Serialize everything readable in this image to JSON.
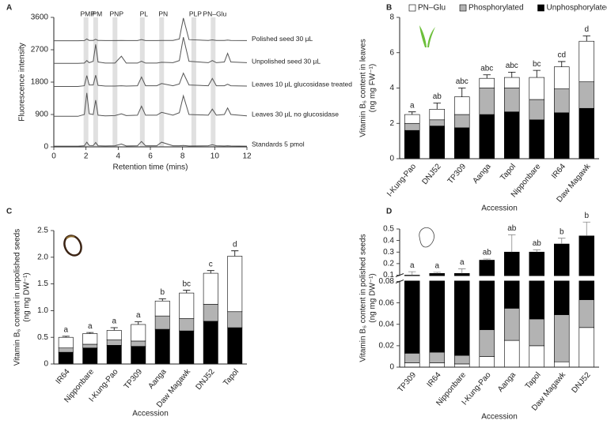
{
  "chart_data": [
    {
      "type": "line",
      "panel": "A",
      "xlabel": "Retention time (mins)",
      "ylabel": "Fluorescence intensity",
      "xlim": [
        0,
        12
      ],
      "xticks": [
        0,
        2,
        4,
        6,
        8,
        10,
        12
      ],
      "ylim": [
        0,
        3600
      ],
      "yticks": [
        0,
        900,
        1800,
        2700,
        3600
      ],
      "peaks": [
        {
          "label": "PMP",
          "x": 2.0
        },
        {
          "label": "PM",
          "x": 2.6
        },
        {
          "label": "PNP",
          "x": 3.8
        },
        {
          "label": "PL",
          "x": 5.5
        },
        {
          "label": "PN",
          "x": 6.7
        },
        {
          "label": "PLP",
          "x": 8.7
        },
        {
          "label": "PN–Glu",
          "x": 9.9
        }
      ],
      "x": [
        0,
        1.5,
        1.9,
        2.05,
        2.2,
        2.45,
        2.6,
        2.75,
        3.2,
        3.8,
        4.2,
        4.5,
        5.2,
        5.45,
        5.7,
        6.4,
        6.7,
        7.4,
        7.8,
        8.05,
        8.4,
        9.6,
        9.85,
        10.1,
        10.6,
        10.8,
        11.0,
        12
      ],
      "series": [
        {
          "name": "Polished seed 30 µL",
          "color": "#555555",
          "values": [
            2950,
            2950,
            2955,
            3000,
            2960,
            2960,
            2990,
            2960,
            2955,
            2955,
            2960,
            2955,
            2955,
            2980,
            2955,
            2955,
            2960,
            2960,
            3000,
            3580,
            2980,
            2960,
            2975,
            2960,
            2960,
            2970,
            2960,
            2955
          ]
        },
        {
          "name": "Unpolished seed 30 µL",
          "color": "#555555",
          "values": [
            2320,
            2320,
            2330,
            2400,
            2340,
            2380,
            2850,
            2360,
            2330,
            2330,
            2520,
            2330,
            2330,
            2380,
            2330,
            2330,
            2350,
            2340,
            2400,
            3050,
            2380,
            2340,
            2400,
            2340,
            2360,
            2600,
            2360,
            2340
          ]
        },
        {
          "name": "Leaves 10 µL glucosidase treated",
          "color": "#555555",
          "values": [
            1680,
            1680,
            1700,
            1980,
            1720,
            1720,
            1990,
            1710,
            1690,
            1690,
            1700,
            1690,
            1700,
            1940,
            1700,
            1700,
            1760,
            1700,
            1750,
            2050,
            1720,
            1700,
            1900,
            1700,
            1700,
            1740,
            1700,
            1690
          ]
        },
        {
          "name": "Leaves 30 µL no glucosidase",
          "color": "#555555",
          "values": [
            850,
            850,
            900,
            1500,
            920,
            900,
            1300,
            880,
            860,
            870,
            920,
            870,
            880,
            1130,
            880,
            880,
            960,
            880,
            950,
            1420,
            900,
            880,
            1050,
            880,
            900,
            1080,
            900,
            860
          ]
        },
        {
          "name": "Standards 5 pmol",
          "color": "#555555",
          "values": [
            20,
            20,
            30,
            130,
            40,
            35,
            120,
            30,
            25,
            30,
            80,
            25,
            30,
            150,
            30,
            30,
            130,
            30,
            30,
            40,
            25,
            30,
            60,
            30,
            25,
            30,
            25,
            20
          ]
        }
      ]
    },
    {
      "type": "stacked-bar",
      "panel": "B",
      "legend": "top",
      "xlabel": "Accession",
      "ylabel": [
        "Vitamin B₆ content in leaves",
        "(ng mg FW⁻¹)"
      ],
      "ylim": [
        0,
        8
      ],
      "yticks": [
        0,
        2,
        4,
        6,
        8
      ],
      "categories": [
        "I-Kung-Pao",
        "DNJ52",
        "TP309",
        "Aanga",
        "Tapol",
        "Nipponbare",
        "IR64",
        "Daw Magawk"
      ],
      "letters": [
        "a",
        "ab",
        "abc",
        "abc",
        "abc",
        "bc",
        "cd",
        "d"
      ],
      "series": [
        {
          "name": "Unphosphorylated",
          "color": "#000000",
          "values": [
            1.6,
            1.85,
            1.75,
            2.5,
            2.65,
            2.2,
            2.6,
            2.85
          ],
          "errors": [
            0.3,
            0.6,
            0.45,
            0.5,
            0.45,
            0.3,
            0.4,
            0.45
          ]
        },
        {
          "name": "Phosphorylated",
          "color": "#b3b3b3",
          "values": [
            0.4,
            0.35,
            0.75,
            1.5,
            1.35,
            1.15,
            1.35,
            1.5
          ],
          "errors": [
            0.1,
            0.2,
            0.3,
            0.5,
            0.35,
            0.4,
            0.4,
            0.3
          ]
        },
        {
          "name": "PN–Glu",
          "color": "#ffffff",
          "values": [
            0.5,
            0.6,
            1.0,
            0.55,
            0.6,
            1.25,
            1.25,
            2.3
          ],
          "errors": [
            0.15,
            0.35,
            0.5,
            0.2,
            0.3,
            0.4,
            0.3,
            0.3
          ]
        }
      ]
    },
    {
      "type": "stacked-bar",
      "panel": "C",
      "xlabel": "Accession",
      "ylabel": [
        "Vitamin B₆ content in unpolished seeds",
        "(ng mg DW⁻¹)"
      ],
      "ylim": [
        0,
        2.5
      ],
      "yticks": [
        0,
        0.5,
        {
          "value": 1,
          "label": "1.0"
        },
        1.5,
        {
          "value": 2,
          "label": "2.0"
        },
        2.5
      ],
      "categories": [
        "IR64",
        "Nipponbare",
        "I-Kung-Pao",
        "TP309",
        "Aanga",
        "Daw Magawk",
        "DNJ52",
        "Tapol"
      ],
      "letters": [
        "a",
        "a",
        "a",
        "a",
        "b",
        "bc",
        "c",
        "d"
      ],
      "series": [
        {
          "name": "Unphosphorylated",
          "color": "#000000",
          "values": [
            0.22,
            0.3,
            0.35,
            0.33,
            0.65,
            0.62,
            0.8,
            0.68
          ],
          "errors": [
            0.04,
            0.03,
            0.1,
            0.05,
            0.15,
            0.1,
            0.1,
            0.05
          ]
        },
        {
          "name": "Phosphorylated",
          "color": "#b3b3b3",
          "values": [
            0.08,
            0.07,
            0.1,
            0.1,
            0.25,
            0.23,
            0.32,
            0.3
          ],
          "errors": [
            0.02,
            0.02,
            0.03,
            0.03,
            0.08,
            0.05,
            0.05,
            0.02
          ]
        },
        {
          "name": "PN–Glu",
          "color": "#ffffff",
          "values": [
            0.2,
            0.2,
            0.18,
            0.31,
            0.28,
            0.48,
            0.58,
            1.04
          ],
          "errors": [
            0.02,
            0.02,
            0.05,
            0.05,
            0.04,
            0.05,
            0.05,
            0.1
          ]
        }
      ]
    },
    {
      "type": "stacked-bar",
      "panel": "D",
      "xlabel": "Accession",
      "ylabel": [
        "Vitamin B₆ content in polished seeds",
        "(ng mg DW⁻¹)"
      ],
      "ylim": [
        0,
        0.5
      ],
      "ybreak": [
        0.08,
        0.1
      ],
      "yticks": [
        0,
        0.02,
        0.04,
        0.06,
        0.08,
        0.1,
        0.2,
        0.3,
        0.4,
        0.5
      ],
      "categories": [
        "TP309",
        "IR64",
        "Nipponbare",
        "I-Kung-Pao",
        "Aanga",
        "Tapol",
        "Daw Magawk",
        "DNJ52"
      ],
      "letters": [
        "a",
        "a",
        "a",
        "ab",
        "ab",
        "ab",
        "b",
        "b"
      ],
      "series": [
        {
          "name": "PN–Glu",
          "color": "#ffffff",
          "values": [
            0.004,
            0.004,
            0.003,
            0.01,
            0.025,
            0.02,
            0.005,
            0.037
          ],
          "errors": [
            0.002,
            0.002,
            0.002,
            0.005,
            0.04,
            0.003,
            0.002,
            0.02
          ]
        },
        {
          "name": "Phosphorylated",
          "color": "#b3b3b3",
          "values": [
            0.009,
            0.01,
            0.008,
            0.025,
            0.03,
            0.025,
            0.044,
            0.026
          ],
          "errors": [
            0.002,
            0.003,
            0.002,
            0.005,
            0.015,
            0.01,
            0.01,
            0.02
          ]
        },
        {
          "name": "Unphosphorylated",
          "color": "#000000",
          "values": [
            0.087,
            0.101,
            0.104,
            0.195,
            0.245,
            0.255,
            0.321,
            0.377
          ],
          "errors": [
            0.03,
            0.01,
            0.04,
            0.01,
            0.15,
            0.02,
            0.05,
            0.12
          ]
        }
      ]
    }
  ]
}
